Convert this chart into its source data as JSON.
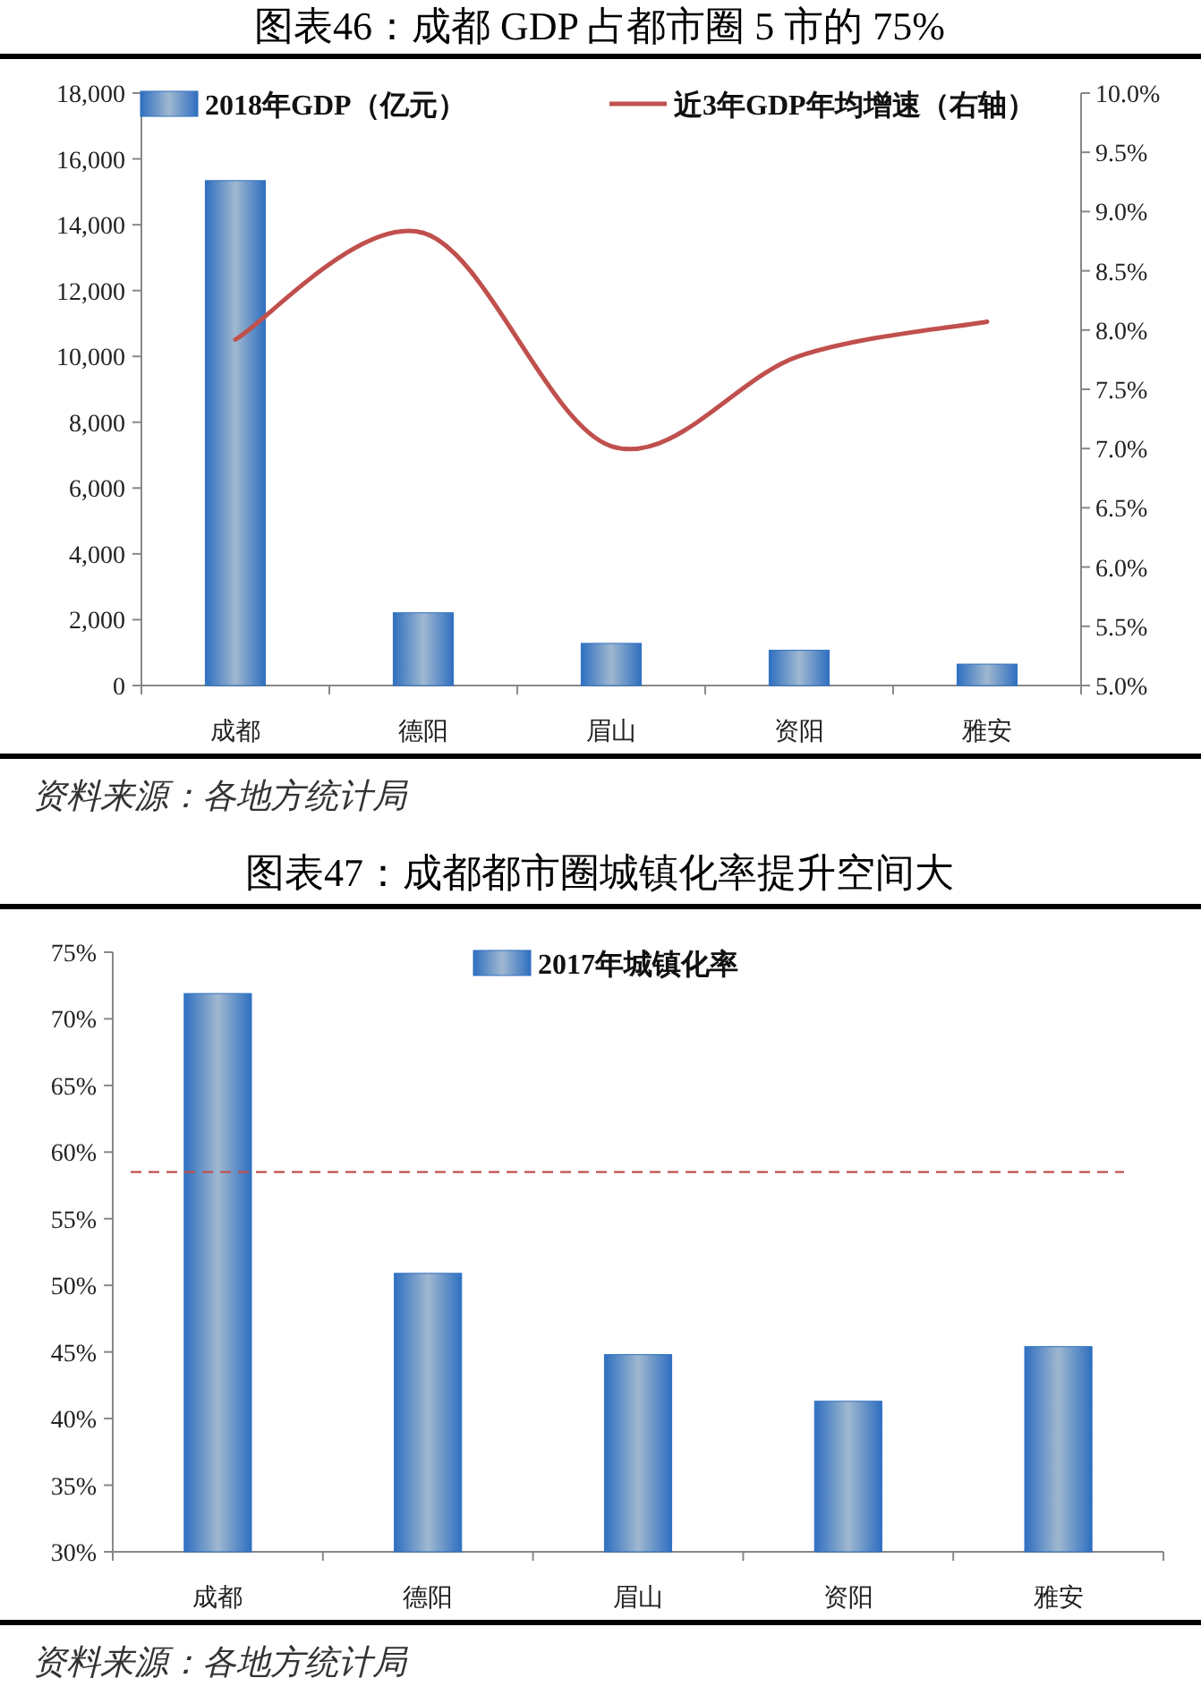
{
  "chart_data": [
    {
      "type": "bar",
      "title": "图表46：成都 GDP 占都市圈 5 市的 75%",
      "categories": [
        "成都",
        "德阳",
        "眉山",
        "资阳",
        "雅安"
      ],
      "series": [
        {
          "name": "2018年GDP（亿元）",
          "type": "bar",
          "color": "#2f6fc0",
          "values": [
            15340,
            2210,
            1280,
            1070,
            650
          ]
        },
        {
          "name": "近3年GDP年均增速（右轴）",
          "type": "line",
          "axis": "y2",
          "color": "#c0504d",
          "values": [
            7.92,
            8.82,
            7.02,
            7.78,
            8.07
          ]
        }
      ],
      "ylim": [
        0,
        18000
      ],
      "yticks": [
        0,
        {
          "value": 2000,
          "label": "2,000"
        },
        {
          "value": 4000,
          "label": "4,000"
        },
        {
          "value": 6000,
          "label": "6,000"
        },
        {
          "value": 8000,
          "label": "8,000"
        },
        {
          "value": 10000,
          "label": "10,000"
        },
        {
          "value": 12000,
          "label": "12,000"
        },
        {
          "value": 14000,
          "label": "14,000"
        },
        {
          "value": 16000,
          "label": "16,000"
        },
        {
          "value": 18000,
          "label": "18,000"
        }
      ],
      "y2lim": [
        5,
        10
      ],
      "y2ticks": [
        {
          "value": 5,
          "label": "5.0%"
        },
        {
          "value": 5.5,
          "label": "5.5%"
        },
        {
          "value": 6,
          "label": "6.0%"
        },
        {
          "value": 6.5,
          "label": "6.5%"
        },
        {
          "value": 7,
          "label": "7.0%"
        },
        {
          "value": 7.5,
          "label": "7.5%"
        },
        {
          "value": 8,
          "label": "8.0%"
        },
        {
          "value": 8.5,
          "label": "8.5%"
        },
        {
          "value": 9,
          "label": "9.0%"
        },
        {
          "value": 9.5,
          "label": "9.5%"
        },
        {
          "value": 10,
          "label": "10.0%"
        }
      ],
      "legend": "top",
      "annotations": [
        "资料来源：各地方统计局"
      ]
    },
    {
      "type": "bar",
      "title": "图表47：成都都市圈城镇化率提升空间大",
      "categories": [
        "成都",
        "德阳",
        "眉山",
        "资阳",
        "雅安"
      ],
      "series": [
        {
          "name": "2017年城镇化率",
          "color": "#2f6fc0",
          "values": [
            71.9,
            50.9,
            44.8,
            41.3,
            45.4
          ]
        }
      ],
      "ylim": [
        30,
        75
      ],
      "yticks": [
        {
          "value": 30,
          "label": "30%"
        },
        {
          "value": 35,
          "label": "35%"
        },
        {
          "value": 40,
          "label": "40%"
        },
        {
          "value": 45,
          "label": "45%"
        },
        {
          "value": 50,
          "label": "50%"
        },
        {
          "value": 55,
          "label": "55%"
        },
        {
          "value": 60,
          "label": "60%"
        },
        {
          "value": 65,
          "label": "65%"
        },
        {
          "value": 70,
          "label": "70%"
        },
        {
          "value": 75,
          "label": "75%"
        }
      ],
      "ref_lines": [
        {
          "axis": "y",
          "value": 58.5,
          "color": "#c0504d",
          "line_style": "dashed"
        }
      ],
      "legend": "top",
      "annotations": [
        "资料来源：各地方统计局"
      ]
    }
  ]
}
